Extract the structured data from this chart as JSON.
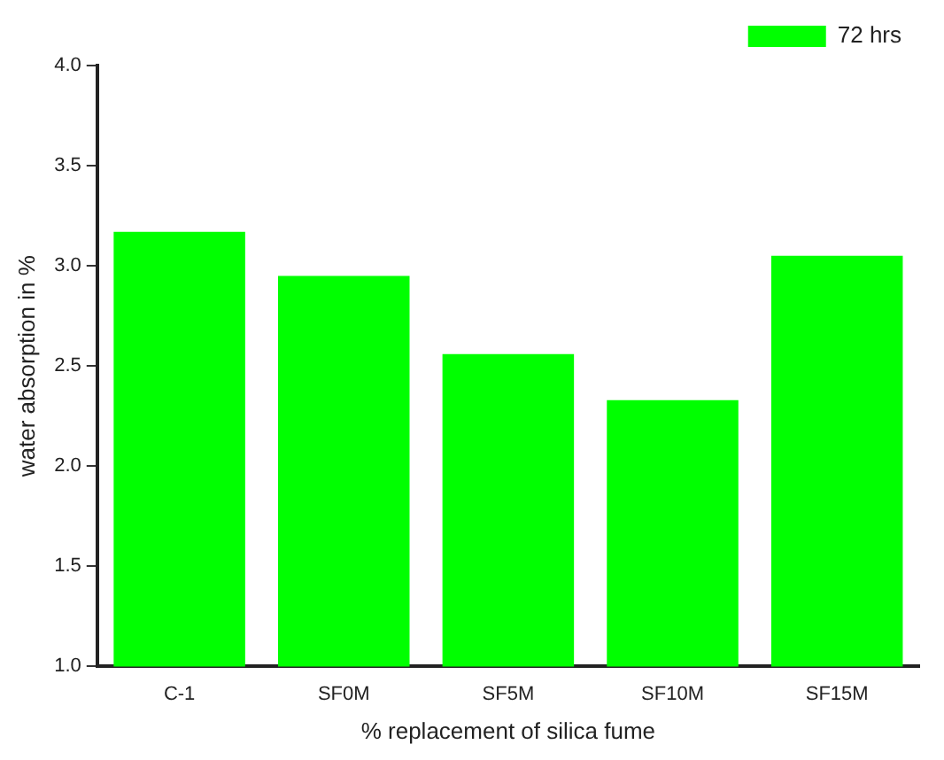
{
  "chart_data": {
    "type": "bar",
    "xlabel": "% replacement of silica fume",
    "ylabel": "water absorption in %",
    "categories": [
      "C-1",
      "SF0M",
      "SF5M",
      "SF10M",
      "SF15M"
    ],
    "series": [
      {
        "name": "72 hrs",
        "color": "#00ff00",
        "values": [
          3.17,
          2.95,
          2.56,
          2.33,
          3.05
        ]
      }
    ],
    "ylim": [
      1.0,
      4.0
    ],
    "yticks": [
      {
        "value": 1.0,
        "label": "1.0"
      },
      {
        "value": 1.5,
        "label": "1.5"
      },
      {
        "value": 2.0,
        "label": "2.0"
      },
      {
        "value": 2.5,
        "label": "2.5"
      },
      {
        "value": 3.0,
        "label": "3.0"
      },
      {
        "value": 3.5,
        "label": "3.5"
      },
      {
        "value": 4.0,
        "label": "4.0"
      }
    ],
    "grid": false,
    "legend": "top right"
  }
}
